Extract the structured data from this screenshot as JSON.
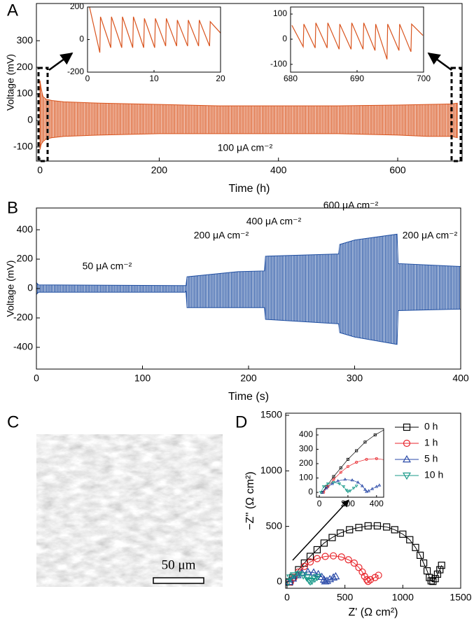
{
  "panel_labels": [
    "A",
    "B",
    "C",
    "D"
  ],
  "image_panel": {
    "scale_bar": "50 μm"
  },
  "chart_data": [
    {
      "type": "band",
      "xlabel": "Time (h)",
      "ylabel": "Voltage (mV)",
      "color": "#d9541e",
      "x": [
        0,
        2,
        5,
        10,
        20,
        40,
        100,
        200,
        300,
        400,
        500,
        600,
        650,
        690,
        700
      ],
      "upper": [
        150,
        120,
        90,
        80,
        75,
        70,
        65,
        60,
        55,
        55,
        55,
        58,
        60,
        62,
        65
      ],
      "lower": [
        -110,
        -90,
        -80,
        -70,
        -65,
        -60,
        -55,
        -50,
        -50,
        -50,
        -50,
        -55,
        -60,
        -60,
        -65
      ],
      "xlim": [
        -6,
        708
      ],
      "xticks": [
        0,
        200,
        400,
        600
      ],
      "ylim": [
        -153,
        440
      ],
      "yticks": [
        -100,
        0,
        100,
        200,
        300
      ],
      "annotations": [
        "100 μA cm⁻²"
      ]
    },
    {
      "type": "line",
      "color": "#d9541e",
      "x": [
        0.3,
        1.85,
        1.95,
        3.5,
        3.6,
        5.15,
        5.25,
        6.8,
        6.9,
        8.45,
        8.55,
        10.1,
        10.2,
        11.75,
        11.85,
        13.4,
        13.5,
        15.05,
        15.15,
        16.7,
        16.8,
        18.35,
        18.45,
        20
      ],
      "values": [
        200,
        -80,
        140,
        -50,
        140,
        -50,
        140,
        -50,
        140,
        -50,
        130,
        -50,
        130,
        -40,
        130,
        -40,
        120,
        -40,
        120,
        -40,
        120,
        -40,
        110,
        40
      ],
      "xlim": [
        0,
        20
      ],
      "xticks": [
        0,
        10,
        20
      ],
      "ylim": [
        -200,
        200
      ],
      "yticks": [
        -200,
        0,
        200
      ]
    },
    {
      "type": "line",
      "color": "#d9541e",
      "x": [
        680.2,
        681.9,
        682.0,
        683.7,
        683.8,
        685.5,
        685.6,
        687.3,
        687.4,
        689.1,
        689.2,
        690.9,
        691.0,
        692.7,
        692.8,
        694.5,
        694.6,
        696.3,
        696.4,
        698.1,
        698.2,
        699.9
      ],
      "values": [
        55,
        -30,
        60,
        -35,
        65,
        -35,
        65,
        -40,
        60,
        -40,
        65,
        -40,
        65,
        -45,
        60,
        -80,
        60,
        -45,
        60,
        -50,
        60,
        15
      ],
      "xlim": [
        680,
        700
      ],
      "xticks": [
        680,
        690,
        700
      ],
      "ylim": [
        -131,
        128
      ],
      "yticks": [
        -100,
        0,
        100
      ]
    },
    {
      "type": "band",
      "xlabel": "Time (s)",
      "ylabel": "Voltage (mV)",
      "color": "#1f4ea1",
      "x": [
        0,
        2,
        140,
        141,
        142,
        190,
        215,
        216,
        285,
        286,
        300,
        340,
        341,
        400
      ],
      "upper": [
        40,
        25,
        20,
        20,
        80,
        115,
        120,
        220,
        235,
        300,
        330,
        370,
        170,
        150
      ],
      "lower": [
        -40,
        -25,
        -25,
        -20,
        -130,
        -130,
        -130,
        -210,
        -240,
        -300,
        -330,
        -380,
        -150,
        -140
      ],
      "xlim": [
        0,
        400
      ],
      "xticks": [
        0,
        100,
        200,
        300,
        400
      ],
      "ylim": [
        -548,
        548
      ],
      "yticks": [
        -400,
        -200,
        0,
        200,
        400
      ],
      "annotations": [
        "50 μA cm⁻²",
        "200 μA cm⁻²",
        "400 μA cm⁻²",
        "600 μA cm⁻²",
        "200 μA cm⁻²"
      ]
    },
    {
      "type": "line",
      "xlabel": "Z' (Ω cm²)",
      "ylabel": "−Z'' (Ω cm²)",
      "legend": "upper right",
      "xlim": [
        -12,
        1500
      ],
      "xticks": [
        0,
        500,
        1000,
        1500
      ],
      "ylim": [
        -57,
        1519
      ],
      "yticks": [
        0,
        500,
        1000,
        1500
      ],
      "series": [
        {
          "name": "0 h",
          "color": "#000000",
          "marker": "square",
          "x": [
            20,
            50,
            100,
            150,
            200,
            260,
            320,
            390,
            460,
            540,
            620,
            700,
            780,
            860,
            930,
            1000,
            1060,
            1110,
            1150,
            1180,
            1210,
            1230,
            1245,
            1260,
            1280,
            1300,
            1320,
            1335
          ],
          "values": [
            0,
            40,
            110,
            170,
            230,
            290,
            350,
            400,
            440,
            470,
            490,
            505,
            505,
            495,
            470,
            430,
            380,
            310,
            240,
            170,
            100,
            40,
            10,
            5,
            30,
            70,
            110,
            150
          ]
        },
        {
          "name": "1 h",
          "color": "#e8262c",
          "marker": "circle",
          "x": [
            30,
            60,
            100,
            150,
            200,
            260,
            330,
            400,
            470,
            530,
            580,
            620,
            650,
            670,
            690,
            700,
            720,
            760,
            790
          ],
          "values": [
            0,
            40,
            90,
            140,
            180,
            210,
            230,
            235,
            225,
            200,
            170,
            130,
            90,
            50,
            20,
            5,
            20,
            40,
            60
          ]
        },
        {
          "name": "5 h",
          "color": "#2a4aa8",
          "marker": "triangle-up",
          "x": [
            20,
            50,
            90,
            130,
            180,
            230,
            270,
            300,
            320,
            330,
            345,
            370,
            400,
            420
          ],
          "values": [
            0,
            30,
            60,
            80,
            90,
            85,
            70,
            45,
            20,
            5,
            10,
            25,
            40,
            50
          ]
        },
        {
          "name": "10 h",
          "color": "#1a9a8a",
          "marker": "triangle-down",
          "x": [
            10,
            30,
            60,
            100,
            140,
            170,
            190,
            200,
            215,
            240,
            260
          ],
          "values": [
            0,
            40,
            60,
            70,
            60,
            40,
            15,
            5,
            10,
            30,
            45
          ]
        }
      ]
    },
    {
      "type": "inset",
      "xlim": [
        -20,
        450
      ],
      "xticks": [
        0,
        200,
        400
      ],
      "ylim": [
        -34,
        444
      ],
      "yticks": [
        0,
        100,
        200,
        300,
        400
      ]
    }
  ]
}
